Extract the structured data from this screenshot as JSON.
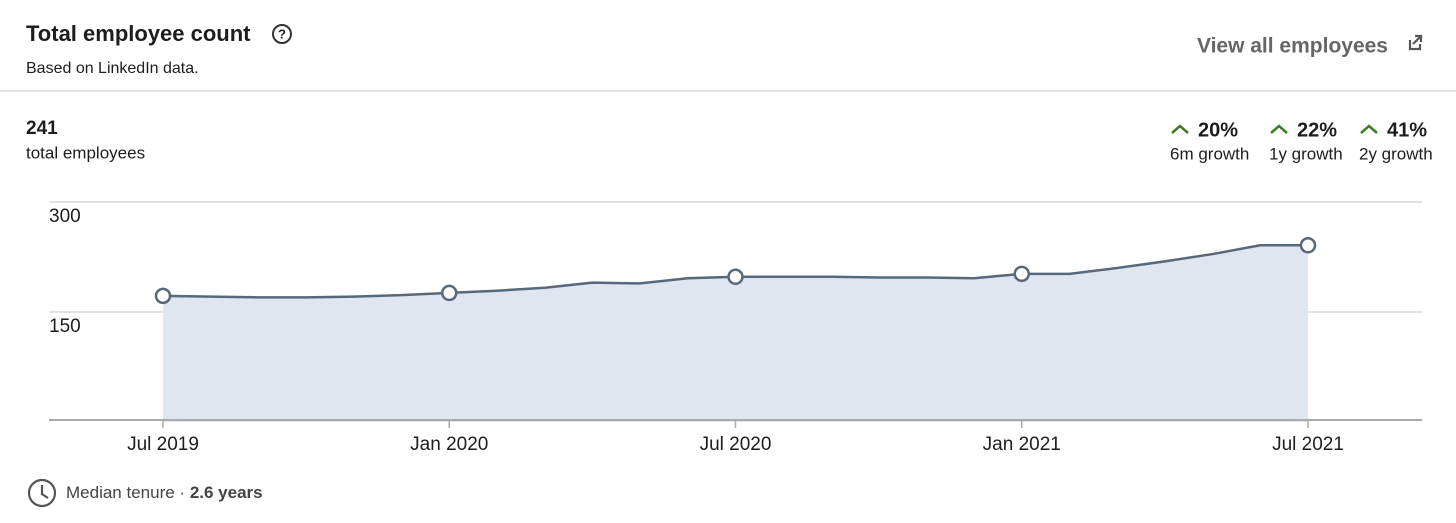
{
  "header": {
    "title": "Total employee count",
    "subtitle": "Based on LinkedIn data."
  },
  "link": {
    "label": "View all employees"
  },
  "summary": {
    "count": 241,
    "label": "total employees"
  },
  "growth": [
    {
      "value": "20%",
      "label": "6m growth"
    },
    {
      "value": "22%",
      "label": "1y growth"
    },
    {
      "value": "41%",
      "label": "2y growth"
    }
  ],
  "chart_data": {
    "type": "area",
    "categories": [
      "Jul 2019",
      null,
      null,
      null,
      null,
      null,
      "Jan 2020",
      null,
      null,
      null,
      null,
      null,
      "Jul 2020",
      null,
      null,
      null,
      null,
      null,
      "Jan 2021",
      null,
      null,
      null,
      null,
      null,
      "Jul 2021"
    ],
    "values": [
      172,
      171,
      170,
      170,
      171,
      173,
      176,
      179,
      183,
      190,
      189,
      196,
      198,
      198,
      198,
      197,
      197,
      196,
      202,
      202,
      210,
      219,
      229,
      241,
      241
    ],
    "color": "#56687a",
    "fill": "#dfe6f0",
    "ylim": [
      0,
      300
    ],
    "yticks": [
      150,
      300
    ],
    "grid": true
  },
  "footer": {
    "label": "Median tenure",
    "separator": "·",
    "value": "2.6 years"
  }
}
